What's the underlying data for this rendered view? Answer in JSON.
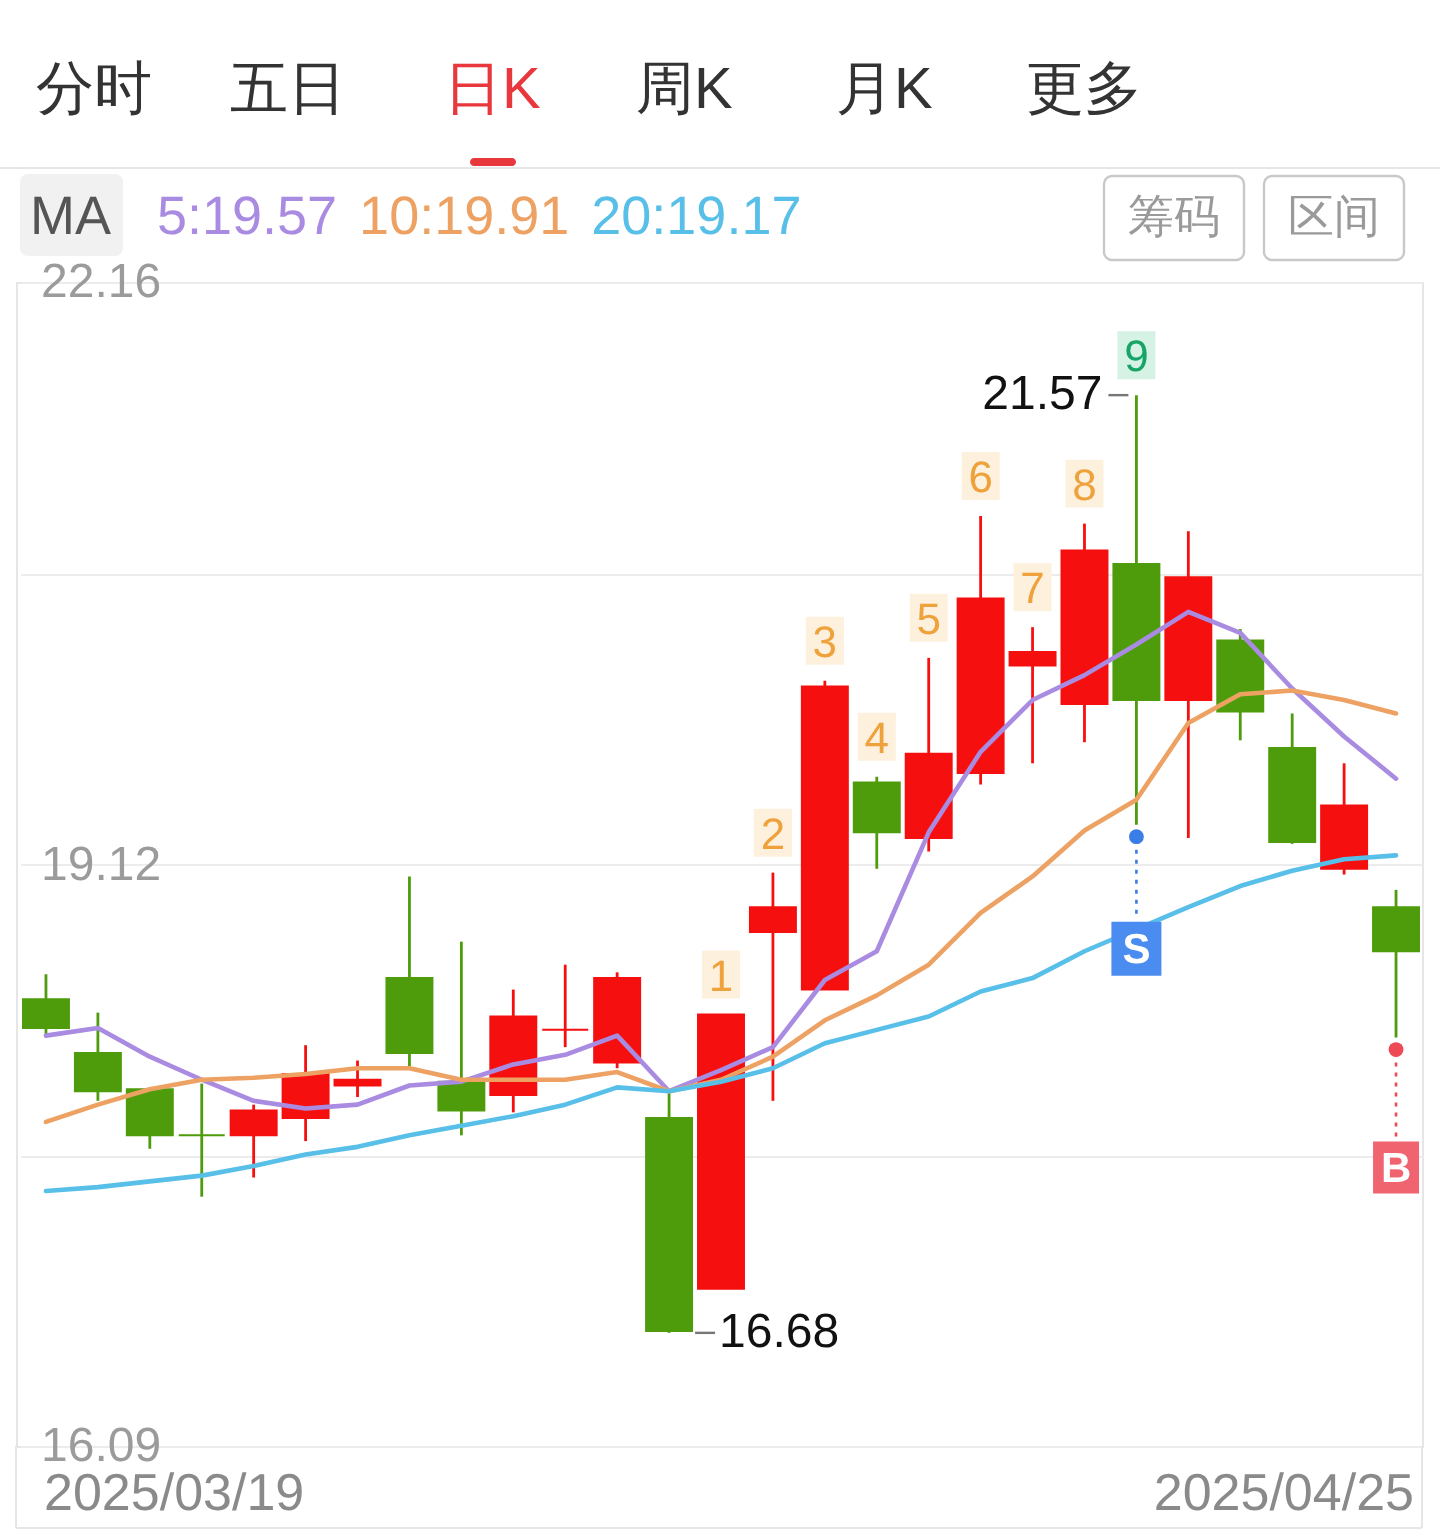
{
  "chart_data": {
    "type": "candlestick",
    "categories": [
      null,
      null,
      null,
      null,
      null,
      null,
      null,
      null,
      null,
      null,
      null,
      null,
      null,
      null,
      null,
      null,
      null,
      null,
      null,
      null,
      null,
      null,
      null,
      null,
      null,
      null,
      null
    ],
    "ohlc": [
      [
        18.42,
        18.55,
        18.23,
        18.27
      ],
      [
        18.14,
        18.35,
        17.89,
        17.94
      ],
      [
        17.95,
        17.96,
        17.64,
        17.71
      ],
      [
        17.71,
        17.98,
        17.39,
        17.71
      ],
      [
        17.71,
        17.87,
        17.49,
        17.84
      ],
      [
        17.8,
        18.18,
        17.68,
        18.03
      ],
      [
        17.97,
        18.1,
        17.91,
        18.0
      ],
      [
        18.53,
        19.06,
        18.07,
        18.14
      ],
      [
        17.99,
        18.72,
        17.71,
        17.84
      ],
      [
        17.92,
        18.47,
        17.83,
        18.33
      ],
      [
        18.26,
        18.6,
        18.17,
        18.26
      ],
      [
        18.09,
        18.56,
        18.06,
        18.53
      ],
      [
        17.8,
        17.94,
        16.68,
        16.69
      ],
      [
        16.91,
        18.34,
        16.91,
        18.34
      ],
      [
        18.77,
        19.08,
        17.89,
        18.9
      ],
      [
        18.47,
        20.08,
        18.47,
        20.05
      ],
      [
        19.55,
        19.58,
        19.1,
        19.29
      ],
      [
        19.26,
        20.2,
        19.19,
        19.7
      ],
      [
        19.6,
        20.94,
        19.54,
        20.51
      ],
      [
        20.16,
        20.36,
        19.65,
        20.23
      ],
      [
        19.96,
        20.9,
        19.76,
        20.76
      ],
      [
        20.69,
        21.57,
        19.33,
        19.98
      ],
      [
        19.98,
        20.86,
        19.26,
        20.62
      ],
      [
        20.29,
        20.35,
        19.77,
        19.92
      ],
      [
        19.73,
        19.91,
        19.23,
        19.24
      ],
      [
        19.1,
        19.65,
        19.07,
        19.43
      ],
      [
        18.9,
        18.99,
        18.22,
        18.67
      ]
    ],
    "colors": [
      "#4e9c0b",
      "#4e9c0b",
      "#4e9c0b",
      "#4e9c0b",
      "#f50f0f",
      "#f50f0f",
      "#f50f0f",
      "#4e9c0b",
      "#4e9c0b",
      "#f50f0f",
      "#f50f0f",
      "#f50f0f",
      "#4e9c0b",
      "#f50f0f",
      "#f50f0f",
      "#f50f0f",
      "#4e9c0b",
      "#f50f0f",
      "#f50f0f",
      "#f50f0f",
      "#f50f0f",
      "#4e9c0b",
      "#f50f0f",
      "#4e9c0b",
      "#4e9c0b",
      "#f50f0f",
      "#4e9c0b"
    ],
    "series": [
      {
        "name": "5:19.57",
        "type": "line",
        "color": "#a98be2",
        "values": [
          18.23,
          18.27,
          18.12,
          18.0,
          17.89,
          17.85,
          17.87,
          17.97,
          17.99,
          18.08,
          18.13,
          18.23,
          17.94,
          18.05,
          18.17,
          18.52,
          18.67,
          19.29,
          19.71,
          19.98,
          20.11,
          20.27,
          20.44,
          20.33,
          20.04,
          19.79,
          19.57
        ]
      },
      {
        "name": "10:19.91",
        "type": "line",
        "color": "#eda263",
        "values": [
          17.78,
          17.87,
          17.95,
          18.0,
          18.01,
          18.03,
          18.06,
          18.06,
          18.0,
          18.0,
          18.0,
          18.04,
          17.94,
          18.0,
          18.12,
          18.31,
          18.44,
          18.6,
          18.87,
          19.06,
          19.3,
          19.46,
          19.86,
          20.01,
          20.03,
          19.98,
          19.91
        ]
      },
      {
        "name": "20:19.17",
        "type": "line",
        "color": "#58bfe8",
        "values": [
          17.42,
          17.44,
          17.47,
          17.5,
          17.55,
          17.61,
          17.65,
          17.71,
          17.76,
          17.81,
          17.87,
          17.96,
          17.94,
          17.99,
          18.06,
          18.19,
          18.26,
          18.33,
          18.46,
          18.53,
          18.67,
          null,
          18.9,
          19.01,
          19.09,
          19.15,
          19.17
        ]
      }
    ],
    "legend_title": "MA",
    "legend": "top left",
    "ylim": [
      16.09,
      22.16
    ],
    "yticks": [
      16.09,
      {
        "value": 17.605,
        "label": null
      },
      19.12,
      {
        "value": 20.64,
        "label": null
      },
      22.16
    ],
    "grid": "y",
    "annotations": [
      "分时",
      "五日",
      "日K",
      "周K",
      "月K",
      "更多",
      "筹码",
      "区间",
      {
        "text": "1",
        "y": 18.34
      },
      {
        "text": "2",
        "y": 19.08
      },
      {
        "text": "3",
        "y": 20.08
      },
      {
        "text": "4",
        "y": 19.58
      },
      {
        "text": "5",
        "y": 20.2
      },
      {
        "text": "6",
        "y": 20.94
      },
      {
        "text": "7",
        "y": 20.36
      },
      {
        "text": "8",
        "y": 20.9
      },
      {
        "text": "9",
        "y": 21.57
      },
      "21.57",
      "16.68",
      {
        "text": "S",
        "y": 19.33
      },
      {
        "text": "B",
        "y": 18.22
      },
      "2025/03/19",
      "2025/04/25"
    ]
  }
}
